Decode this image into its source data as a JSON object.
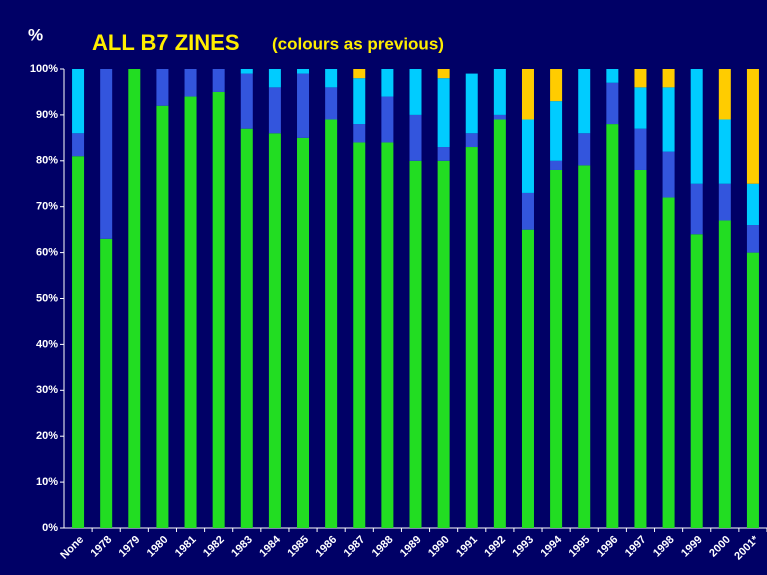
{
  "chart_data": {
    "type": "stacked-bar",
    "title": "ALL B7 ZINES",
    "subtitle": "(colours as previous)",
    "y_label": "%",
    "categories": [
      "None",
      "1978",
      "1979",
      "1980",
      "1981",
      "1982",
      "1983",
      "1984",
      "1985",
      "1986",
      "1987",
      "1988",
      "1989",
      "1990",
      "1991",
      "1992",
      "1993",
      "1994",
      "1995",
      "1996",
      "1997",
      "1998",
      "1999",
      "2000",
      "2001*"
    ],
    "series": [
      {
        "color": "#22dd22",
        "values": [
          81,
          63,
          100,
          92,
          94,
          95,
          87,
          86,
          85,
          89,
          84,
          84,
          80,
          80,
          83,
          89,
          65,
          78,
          79,
          88,
          78,
          72,
          64,
          67,
          60
        ]
      },
      {
        "color": "#3355dd",
        "values": [
          5,
          37,
          0,
          8,
          6,
          5,
          12,
          10,
          14,
          7,
          4,
          10,
          10,
          3,
          3,
          1,
          8,
          2,
          7,
          9,
          9,
          10,
          11,
          8,
          6
        ]
      },
      {
        "color": "#00ccff",
        "values": [
          14,
          0,
          0,
          0,
          0,
          0,
          1,
          4,
          1,
          4,
          10,
          6,
          10,
          15,
          13,
          10,
          16,
          13,
          14,
          3,
          9,
          14,
          25,
          14,
          9
        ]
      },
      {
        "color": "#ffcc00",
        "values": [
          0,
          0,
          0,
          0,
          0,
          0,
          0,
          0,
          0,
          0,
          2,
          0,
          0,
          2,
          0,
          0,
          11,
          7,
          0,
          0,
          4,
          4,
          0,
          11,
          25
        ]
      }
    ],
    "ylim": [
      0,
      100
    ],
    "yticks": [
      {
        "value": 0,
        "label": "0%"
      },
      {
        "value": 10,
        "label": "10%"
      },
      {
        "value": 20,
        "label": "20%"
      },
      {
        "value": 30,
        "label": "30%"
      },
      {
        "value": 40,
        "label": "40%"
      },
      {
        "value": 50,
        "label": "50%"
      },
      {
        "value": 60,
        "label": "60%"
      },
      {
        "value": 70,
        "label": "70%"
      },
      {
        "value": 80,
        "label": "80%"
      },
      {
        "value": 90,
        "label": "90%"
      },
      {
        "value": 100,
        "label": "100%"
      }
    ]
  }
}
